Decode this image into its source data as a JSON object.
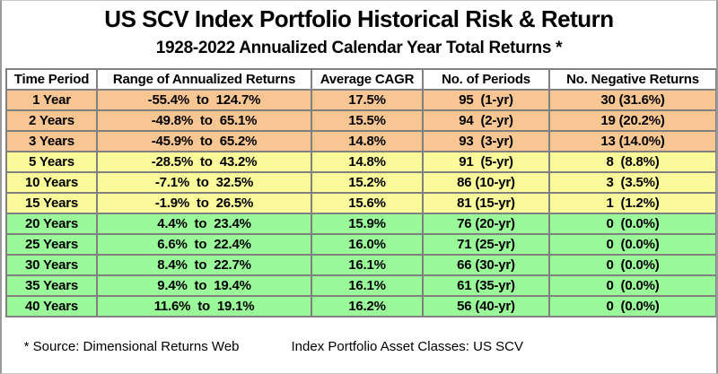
{
  "title": "US SCV Index Portfolio Historical Risk & Return",
  "subtitle": "1928-2022 Annualized Calendar Year Total Returns *",
  "table": {
    "headers": [
      "Time Period",
      "Range of Annualized Returns",
      "Average CAGR",
      "No. of Periods",
      "No. Negative Returns"
    ],
    "rows": [
      {
        "period": "1 Year",
        "range": "-55.4%  to  124.7%",
        "cagr": "17.5%",
        "periods": "95  (1-yr)",
        "negative": "30 (31.6%)",
        "band": "orange"
      },
      {
        "period": "2 Years",
        "range": "-49.8%  to  65.1%",
        "cagr": "15.5%",
        "periods": "94  (2-yr)",
        "negative": "19 (20.2%)",
        "band": "orange"
      },
      {
        "period": "3 Years",
        "range": "-45.9%  to  65.2%",
        "cagr": "14.8%",
        "periods": "93  (3-yr)",
        "negative": "13 (14.0%)",
        "band": "orange"
      },
      {
        "period": "5 Years",
        "range": "-28.5%  to  43.2%",
        "cagr": "14.8%",
        "periods": "91  (5-yr)",
        "negative": "8  (8.8%)",
        "band": "yellow"
      },
      {
        "period": "10 Years",
        "range": "-7.1%  to  32.5%",
        "cagr": "15.2%",
        "periods": "86 (10-yr)",
        "negative": "3  (3.5%)",
        "band": "yellow"
      },
      {
        "period": "15 Years",
        "range": "-1.9%  to  26.5%",
        "cagr": "15.6%",
        "periods": "81 (15-yr)",
        "negative": "1  (1.2%)",
        "band": "yellow"
      },
      {
        "period": "20 Years",
        "range": "4.4%  to  23.4%",
        "cagr": "15.9%",
        "periods": "76 (20-yr)",
        "negative": "0  (0.0%)",
        "band": "green"
      },
      {
        "period": "25 Years",
        "range": "6.6%  to  22.4%",
        "cagr": "16.0%",
        "periods": "71 (25-yr)",
        "negative": "0  (0.0%)",
        "band": "green"
      },
      {
        "period": "30 Years",
        "range": "8.4%  to  22.7%",
        "cagr": "16.1%",
        "periods": "66 (30-yr)",
        "negative": "0  (0.0%)",
        "band": "green"
      },
      {
        "period": "35 Years",
        "range": "9.4%  to  19.4%",
        "cagr": "16.1%",
        "periods": "61 (35-yr)",
        "negative": "0  (0.0%)",
        "band": "green"
      },
      {
        "period": "40 Years",
        "range": "11.6%  to  19.1%",
        "cagr": "16.2%",
        "periods": "56 (40-yr)",
        "negative": "0  (0.0%)",
        "band": "green"
      }
    ]
  },
  "footer": {
    "source": "* Source: Dimensional Returns Web",
    "asset_classes": "Index Portfolio Asset Classes: US SCV"
  },
  "colors": {
    "band_orange": "#F8C692",
    "band_yellow": "#FBFA9B",
    "band_green": "#9AFA9A",
    "table_border": "#808080",
    "text": "#000000",
    "background": "#FFFFFF"
  },
  "chart_data": {
    "type": "table",
    "title": "US SCV Index Portfolio Historical Risk & Return",
    "subtitle": "1928-2022 Annualized Calendar Year Total Returns *",
    "columns": [
      "Time Period",
      "Range of Annualized Returns",
      "Average CAGR",
      "No. of Periods",
      "No. Negative Returns"
    ],
    "rows": [
      [
        "1 Year",
        "-55.4% to 124.7%",
        "17.5%",
        "95 (1-yr)",
        "30 (31.6%)"
      ],
      [
        "2 Years",
        "-49.8% to 65.1%",
        "15.5%",
        "94 (2-yr)",
        "19 (20.2%)"
      ],
      [
        "3 Years",
        "-45.9% to 65.2%",
        "14.8%",
        "93 (3-yr)",
        "13 (14.0%)"
      ],
      [
        "5 Years",
        "-28.5% to 43.2%",
        "14.8%",
        "91 (5-yr)",
        "8 (8.8%)"
      ],
      [
        "10 Years",
        "-7.1% to 32.5%",
        "15.2%",
        "86 (10-yr)",
        "3 (3.5%)"
      ],
      [
        "15 Years",
        "-1.9% to 26.5%",
        "15.6%",
        "81 (15-yr)",
        "1 (1.2%)"
      ],
      [
        "20 Years",
        "4.4% to 23.4%",
        "15.9%",
        "76 (20-yr)",
        "0 (0.0%)"
      ],
      [
        "25 Years",
        "6.6% to 22.4%",
        "16.0%",
        "71 (25-yr)",
        "0 (0.0%)"
      ],
      [
        "30 Years",
        "8.4% to 22.7%",
        "16.1%",
        "66 (30-yr)",
        "0 (0.0%)"
      ],
      [
        "35 Years",
        "9.4% to 19.4%",
        "16.1%",
        "61 (35-yr)",
        "0 (0.0%)"
      ],
      [
        "40 Years",
        "11.6% to 19.1%",
        "16.2%",
        "56 (40-yr)",
        "0 (0.0%)"
      ]
    ],
    "numeric": {
      "horizon_years": [
        1,
        2,
        3,
        5,
        10,
        15,
        20,
        25,
        30,
        35,
        40
      ],
      "range_min_pct": [
        -55.4,
        -49.8,
        -45.9,
        -28.5,
        -7.1,
        -1.9,
        4.4,
        6.6,
        8.4,
        9.4,
        11.6
      ],
      "range_max_pct": [
        124.7,
        65.1,
        65.2,
        43.2,
        32.5,
        26.5,
        23.4,
        22.4,
        22.7,
        19.4,
        19.1
      ],
      "average_cagr_pct": [
        17.5,
        15.5,
        14.8,
        14.8,
        15.2,
        15.6,
        15.9,
        16.0,
        16.1,
        16.1,
        16.2
      ],
      "num_periods": [
        95,
        94,
        93,
        91,
        86,
        81,
        76,
        71,
        66,
        61,
        56
      ],
      "num_negative": [
        30,
        19,
        13,
        8,
        3,
        1,
        0,
        0,
        0,
        0,
        0
      ],
      "pct_negative": [
        31.6,
        20.2,
        14.0,
        8.8,
        3.5,
        1.2,
        0.0,
        0.0,
        0.0,
        0.0,
        0.0
      ]
    },
    "row_band_colors": [
      "orange",
      "orange",
      "orange",
      "yellow",
      "yellow",
      "yellow",
      "green",
      "green",
      "green",
      "green",
      "green"
    ]
  }
}
